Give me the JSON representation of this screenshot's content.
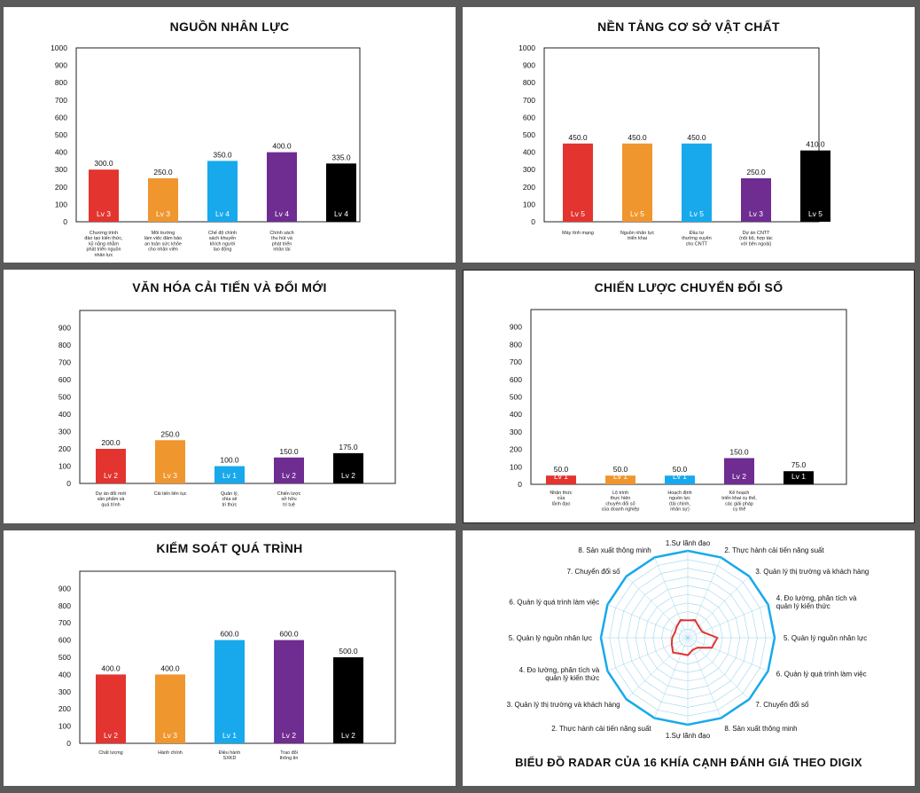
{
  "chart_data": [
    {
      "id": "nhan-luc",
      "type": "bar",
      "title": "NGUỒN NHÂN LỰC",
      "ylim": [
        0,
        1000
      ],
      "yticks": [
        0,
        100,
        200,
        300,
        400,
        500,
        600,
        700,
        800,
        900,
        1000
      ],
      "categories": [
        [
          "Chương trình",
          "đào tạo kiến thức,",
          "kỹ năng nhằm",
          "phát triển nguồn",
          "nhân lực"
        ],
        [
          "Môi trường",
          "làm việc đảm bảo",
          "an toàn sức khỏe",
          "cho nhân viên"
        ],
        [
          "Chế độ chính",
          "sách khuyến",
          "khích người",
          "lao động"
        ],
        [
          "Chính sách",
          "thu hút và",
          "phát triển",
          "nhân tài"
        ],
        []
      ],
      "values": [
        300,
        250,
        350,
        400,
        335
      ],
      "value_labels": [
        "300.0",
        "250.0",
        "350.0",
        "400.0",
        "335.0"
      ],
      "levels": [
        "Lv 3",
        "Lv 3",
        "Lv 4",
        "Lv 4",
        "Lv 4"
      ],
      "colors": [
        "#e3342f",
        "#f0962e",
        "#17a9ec",
        "#6f2c91",
        "#000000"
      ]
    },
    {
      "id": "co-so-vat-chat",
      "type": "bar",
      "title": "NỀN TẢNG CƠ SỞ VẬT CHẤT",
      "ylim": [
        0,
        1000
      ],
      "yticks": [
        0,
        100,
        200,
        300,
        400,
        500,
        600,
        700,
        800,
        900,
        1000
      ],
      "categories": [
        [
          "Máy tính mạng"
        ],
        [
          "Nguồn nhân lực",
          "triển khai"
        ],
        [
          "Đầu tư",
          "thường xuyên",
          "cho CNTT"
        ],
        [
          "Dự án CNTT",
          "(nội bộ, hợp tác",
          "với bên ngoài)"
        ],
        []
      ],
      "values": [
        450,
        450,
        450,
        250,
        410
      ],
      "value_labels": [
        "450.0",
        "450.0",
        "450.0",
        "250.0",
        "410.0"
      ],
      "levels": [
        "Lv 5",
        "Lv 5",
        "Lv 5",
        "Lv 3",
        "Lv 5"
      ],
      "colors": [
        "#e3342f",
        "#f0962e",
        "#17a9ec",
        "#6f2c91",
        "#000000"
      ]
    },
    {
      "id": "van-hoa",
      "type": "bar",
      "title": "VĂN HÓA CẢI TIẾN VÀ ĐỔI MỚI",
      "ylim": [
        0,
        1000
      ],
      "yticks": [
        0,
        100,
        200,
        300,
        400,
        500,
        600,
        700,
        800,
        900
      ],
      "categories": [
        [
          "Dự án đổi mới",
          "sản phẩm và",
          "quá trình"
        ],
        [
          "Cải tiến liên tục"
        ],
        [
          "Quản lý,",
          "chia sẻ",
          "tri thức"
        ],
        [
          "Chiến lược",
          "sở hữu",
          "trí tuệ"
        ],
        []
      ],
      "values": [
        200,
        250,
        100,
        150,
        175
      ],
      "value_labels": [
        "200.0",
        "250.0",
        "100.0",
        "150.0",
        "175.0"
      ],
      "levels": [
        "Lv 2",
        "Lv 3",
        "Lv 1",
        "Lv 2",
        "Lv 2"
      ],
      "colors": [
        "#e3342f",
        "#f0962e",
        "#17a9ec",
        "#6f2c91",
        "#000000"
      ]
    },
    {
      "id": "chuyen-doi-so",
      "type": "bar",
      "title": "CHIẾN LƯỢC CHUYỂN ĐỔI SỐ",
      "ylim": [
        0,
        1000
      ],
      "yticks": [
        0,
        100,
        200,
        300,
        400,
        500,
        600,
        700,
        800,
        900
      ],
      "categories": [
        [
          "Nhận thức",
          "của",
          "lãnh đạo"
        ],
        [
          "Lộ trình",
          "thực hiện",
          "chuyển đổi số",
          "của doanh nghiệp"
        ],
        [
          "Hoạch định",
          "nguồn lực",
          "(tài chính,",
          "nhân sự)"
        ],
        [
          "Kế hoạch",
          "triển khai cụ thể,",
          "các giải pháp",
          "cụ thể"
        ],
        []
      ],
      "values": [
        50,
        50,
        50,
        150,
        75
      ],
      "value_labels": [
        "50.0",
        "50.0",
        "50.0",
        "150.0",
        "75.0"
      ],
      "levels": [
        "Lv 1",
        "Lv 1",
        "Lv 1",
        "Lv 2",
        "Lv 1"
      ],
      "colors": [
        "#e3342f",
        "#f0962e",
        "#17a9ec",
        "#6f2c91",
        "#000000"
      ]
    },
    {
      "id": "kiem-soat",
      "type": "bar",
      "title": "KIỂM SOÁT QUÁ TRÌNH",
      "ylim": [
        0,
        1000
      ],
      "yticks": [
        0,
        100,
        200,
        300,
        400,
        500,
        600,
        700,
        800,
        900
      ],
      "categories": [
        [
          "Chất lượng"
        ],
        [
          "Hành chính"
        ],
        [
          "Điều hành",
          "SXKD"
        ],
        [
          "Trao đổi",
          "thông tin"
        ],
        []
      ],
      "values": [
        400,
        400,
        600,
        600,
        500
      ],
      "value_labels": [
        "400.0",
        "400.0",
        "600.0",
        "600.0",
        "500.0"
      ],
      "levels": [
        "Lv 2",
        "Lv 3",
        "Lv 1",
        "Lv 2",
        "Lv 2"
      ],
      "colors": [
        "#e3342f",
        "#f0962e",
        "#17a9ec",
        "#6f2c91",
        "#000000"
      ]
    },
    {
      "id": "radar",
      "type": "radar",
      "title": "BIỂU ĐỒ RADAR CỦA 16 KHÍA CẠNH ĐÁNH GIÁ THEO DIGIX",
      "rmax": 10,
      "rings": 10,
      "outline_color": "#17a9ec",
      "grid_color": "#9cd5ef",
      "series_color": "#e3342f",
      "axes": [
        "1.Sự lãnh đạo",
        "2. Thực hành cải tiến năng suất",
        "3. Quản lý thị trường và khách hàng",
        "4. Đo lường, phân tích và\nquản lý kiến thức",
        "5. Quản lý nguồn nhân lực",
        "6. Quản lý quá trình làm việc",
        "7. Chuyển đổi số",
        "8. Sản xuất thông minh",
        "1.Sự lãnh đạo",
        "2. Thực hành cải tiến năng suất",
        "3. Quản lý thị trường và khách hàng",
        "4. Đo lường, phân tích và\nquản lý kiến thức",
        "5. Quản lý nguồn nhân lực",
        "6. Quản lý quá trình làm việc",
        "7. Chuyển đổi số",
        "8. Sản xuất thông minh"
      ],
      "values": [
        2.0,
        2.2,
        1.8,
        1.8,
        3.4,
        3.0,
        1.6,
        1.5,
        2.0,
        2.0,
        2.4,
        2.0,
        1.8,
        1.6,
        1.8,
        2.2
      ]
    }
  ]
}
